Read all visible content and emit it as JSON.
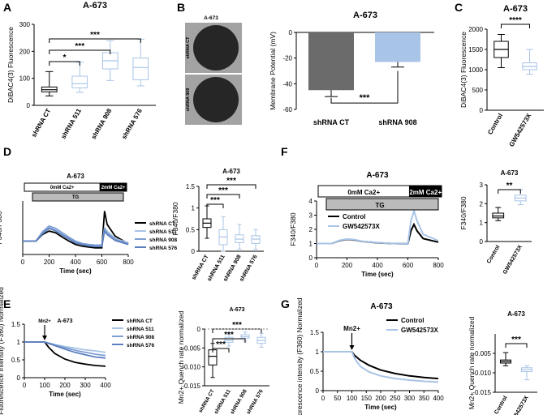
{
  "figure": {
    "panel_letters": [
      "A",
      "B",
      "C",
      "D",
      "E",
      "F",
      "G"
    ],
    "colors": {
      "black": "#000000",
      "dark_blue": "#5b7fbf",
      "light_blue": "#a8c4e6",
      "mid_blue": "#7f9fd3",
      "grey_bar": "#6b6b6b",
      "tg_bar": "#bbbbbb"
    }
  },
  "chart_data": [
    {
      "panel": "A",
      "type": "box",
      "title": "A-673",
      "ylabel": "DiBAC4(3) Fluorescence",
      "ylim": [
        0,
        300
      ],
      "yticks": [
        0,
        100,
        200,
        300
      ],
      "categories": [
        "shRNA CT",
        "shRNA 511",
        "shRNA 908",
        "shRNA 576"
      ],
      "boxes": [
        {
          "min": 35,
          "q1": 50,
          "median": 58,
          "q3": 68,
          "max": 125
        },
        {
          "min": 48,
          "q1": 65,
          "median": 80,
          "q3": 108,
          "max": 160
        },
        {
          "min": 92,
          "q1": 135,
          "median": 165,
          "q3": 195,
          "max": 240
        },
        {
          "min": 72,
          "q1": 95,
          "median": 140,
          "q3": 175,
          "max": 245
        }
      ],
      "comparisons": [
        {
          "from": "shRNA CT",
          "to": "shRNA 511",
          "label": "*"
        },
        {
          "from": "shRNA CT",
          "to": "shRNA 908",
          "label": "***"
        },
        {
          "from": "shRNA CT",
          "to": "shRNA 576",
          "label": "***"
        }
      ]
    },
    {
      "panel": "B",
      "type": "bar",
      "title": "A-673",
      "image_title": "A-673",
      "image_labels": [
        "shRNA CT",
        "shRNA 908"
      ],
      "ylabel": "Membrane Potential (mV)",
      "ylim": [
        -60,
        0
      ],
      "yticks": [
        0,
        -20,
        -40,
        -60
      ],
      "categories": [
        "shRNA CT",
        "shRNA 908"
      ],
      "values": [
        -45,
        -23
      ],
      "errors": [
        5,
        4
      ],
      "comparisons": [
        {
          "from": "shRNA CT",
          "to": "shRNA 908",
          "label": "***"
        }
      ]
    },
    {
      "panel": "C",
      "type": "box",
      "title": "A-673",
      "ylabel": "DiBAC4(3) Fluorescence",
      "ylim": [
        0,
        2000
      ],
      "yticks": [
        0,
        500,
        1000,
        1500,
        2000
      ],
      "categories": [
        "Control",
        "GW542573X"
      ],
      "boxes": [
        {
          "min": 1050,
          "q1": 1300,
          "median": 1500,
          "q3": 1700,
          "max": 1870
        },
        {
          "min": 890,
          "q1": 1000,
          "median": 1080,
          "q3": 1170,
          "max": 1500
        }
      ],
      "comparisons": [
        {
          "from": "Control",
          "to": "GW542573X",
          "label": "****"
        }
      ]
    },
    {
      "panel": "D",
      "type": "line",
      "title": "A-673",
      "ylabel": "F340/F380",
      "xlabel": "Time (sec)",
      "xlim": [
        0,
        800
      ],
      "xticks": [
        0,
        200,
        400,
        600,
        800
      ],
      "ylim": [
        0.6,
        2.2
      ],
      "bar_labels": [
        "0mM Ca2+",
        "2mM Ca2+",
        "TG"
      ],
      "series": [
        {
          "name": "shRNA CT",
          "x": [
            0,
            100,
            150,
            200,
            250,
            300,
            350,
            400,
            450,
            500,
            550,
            600,
            620,
            640,
            700,
            800
          ],
          "y": [
            1.0,
            1.0,
            1.2,
            1.3,
            1.25,
            1.12,
            1.0,
            0.9,
            0.85,
            0.82,
            0.8,
            0.8,
            1.9,
            1.5,
            1.15,
            0.92
          ]
        },
        {
          "name": "shRNA 511",
          "x": [
            0,
            100,
            150,
            200,
            250,
            300,
            350,
            400,
            450,
            500,
            550,
            600,
            620,
            640,
            700,
            800
          ],
          "y": [
            1.0,
            1.0,
            1.25,
            1.4,
            1.35,
            1.22,
            1.1,
            0.98,
            0.92,
            0.88,
            0.87,
            0.87,
            1.4,
            1.3,
            1.08,
            0.95
          ]
        },
        {
          "name": "shRNA 908",
          "x": [
            0,
            100,
            150,
            200,
            250,
            300,
            350,
            400,
            450,
            500,
            550,
            600,
            620,
            640,
            700,
            800
          ],
          "y": [
            1.0,
            1.0,
            1.28,
            1.45,
            1.38,
            1.25,
            1.12,
            1.0,
            0.93,
            0.9,
            0.88,
            0.88,
            1.35,
            1.25,
            1.05,
            0.93
          ]
        },
        {
          "name": "shRNA 576",
          "x": [
            0,
            100,
            150,
            200,
            250,
            300,
            350,
            400,
            450,
            500,
            550,
            600,
            620,
            640,
            700,
            800
          ],
          "y": [
            1.0,
            1.0,
            1.22,
            1.38,
            1.3,
            1.18,
            1.06,
            0.95,
            0.9,
            0.86,
            0.84,
            0.84,
            1.3,
            1.2,
            1.02,
            0.9
          ]
        }
      ]
    },
    {
      "panel": "D-box",
      "type": "box",
      "title": "A-673",
      "ylabel": "F340/F380",
      "ylim": [
        0,
        1.5
      ],
      "yticks": [
        0.0,
        0.5,
        1.0,
        1.5
      ],
      "categories": [
        "shRNA CT",
        "shRNA 511",
        "shRNA 908",
        "shRNA 576"
      ],
      "boxes": [
        {
          "min": 0.3,
          "q1": 0.55,
          "median": 0.65,
          "q3": 0.75,
          "max": 1.05
        },
        {
          "min": 0.0,
          "q1": 0.15,
          "median": 0.33,
          "q3": 0.5,
          "max": 0.8
        },
        {
          "min": 0.05,
          "q1": 0.2,
          "median": 0.28,
          "q3": 0.38,
          "max": 0.62
        },
        {
          "min": 0.05,
          "q1": 0.18,
          "median": 0.28,
          "q3": 0.36,
          "max": 0.5
        }
      ],
      "comparisons": [
        {
          "from": "shRNA CT",
          "to": "shRNA 511",
          "label": "***"
        },
        {
          "from": "shRNA CT",
          "to": "shRNA 908",
          "label": "***"
        },
        {
          "from": "shRNA CT",
          "to": "shRNA 576",
          "label": "***"
        }
      ]
    },
    {
      "panel": "E",
      "type": "line",
      "title": "A-673",
      "ylabel": "Fluorescence Intensity (F360) Normalized",
      "xlabel": "Time (sec)",
      "xlim": [
        0,
        400
      ],
      "xticks": [
        0,
        100,
        200,
        300,
        400
      ],
      "ylim": [
        0.0,
        1.5
      ],
      "yticks": [
        0.0,
        0.5,
        1.0,
        1.5
      ],
      "annotation": "Mn2+",
      "series": [
        {
          "name": "shRNA CT",
          "x": [
            0,
            100,
            120,
            150,
            200,
            250,
            300,
            350,
            400
          ],
          "y": [
            1.0,
            1.0,
            0.85,
            0.68,
            0.52,
            0.43,
            0.38,
            0.34,
            0.32
          ]
        },
        {
          "name": "shRNA 511",
          "x": [
            0,
            100,
            150,
            200,
            250,
            300,
            350,
            400
          ],
          "y": [
            1.0,
            1.0,
            0.93,
            0.87,
            0.83,
            0.78,
            0.75,
            0.71
          ]
        },
        {
          "name": "shRNA 908",
          "x": [
            0,
            100,
            150,
            200,
            250,
            300,
            350,
            400
          ],
          "y": [
            1.0,
            1.0,
            0.92,
            0.84,
            0.77,
            0.71,
            0.66,
            0.62
          ]
        },
        {
          "name": "shRNA 576",
          "x": [
            0,
            100,
            150,
            200,
            250,
            300,
            350,
            400
          ],
          "y": [
            1.0,
            1.0,
            0.9,
            0.8,
            0.71,
            0.64,
            0.58,
            0.55
          ]
        }
      ]
    },
    {
      "panel": "E-box",
      "type": "box",
      "title": "A-673",
      "ylabel": "Mn2+ Quench rate normalized",
      "ylim": [
        -0.015,
        0.0
      ],
      "yticks": [
        0.0,
        -0.005,
        -0.01,
        -0.015
      ],
      "categories": [
        "shRNA CT",
        "shRNA 511",
        "shRNA 908",
        "shRNA 576"
      ],
      "boxes": [
        {
          "min": -0.0128,
          "q1": -0.0095,
          "median": -0.0072,
          "q3": -0.0055,
          "max": -0.0038
        },
        {
          "min": -0.0045,
          "q1": -0.0035,
          "median": -0.003,
          "q3": -0.0022,
          "max": -0.0012
        },
        {
          "min": -0.0032,
          "q1": -0.0024,
          "median": -0.002,
          "q3": -0.0015,
          "max": -0.0008
        },
        {
          "min": -0.0048,
          "q1": -0.0038,
          "median": -0.003,
          "q3": -0.0022,
          "max": -0.0012
        }
      ],
      "comparisons": [
        {
          "from": "shRNA CT",
          "to": "shRNA 511",
          "label": "***"
        },
        {
          "from": "shRNA CT",
          "to": "shRNA 908",
          "label": "***"
        },
        {
          "from": "shRNA CT",
          "to": "shRNA 576",
          "label": "***"
        }
      ]
    },
    {
      "panel": "F",
      "type": "line",
      "title": "A-673",
      "ylabel": "F340/F380",
      "xlabel": "Time (sec)",
      "xlim": [
        0,
        800
      ],
      "xticks": [
        0,
        200,
        400,
        600,
        800
      ],
      "ylim": [
        0,
        4
      ],
      "yticks": [
        0,
        1,
        2,
        3,
        4
      ],
      "bar_labels": [
        "0mM Ca2+",
        "2mM Ca2+",
        "TG"
      ],
      "series": [
        {
          "name": "Control",
          "x": [
            0,
            100,
            150,
            200,
            250,
            300,
            400,
            500,
            600,
            620,
            640,
            660,
            700,
            800
          ],
          "y": [
            1.0,
            1.0,
            1.2,
            1.3,
            1.25,
            1.15,
            1.05,
            1.0,
            0.98,
            1.9,
            2.35,
            1.9,
            1.35,
            1.1
          ]
        },
        {
          "name": "GW542573X",
          "x": [
            0,
            100,
            150,
            200,
            250,
            300,
            400,
            500,
            600,
            620,
            640,
            660,
            700,
            800
          ],
          "y": [
            1.0,
            1.0,
            1.22,
            1.32,
            1.27,
            1.16,
            1.06,
            1.0,
            0.98,
            2.6,
            3.3,
            2.6,
            1.65,
            1.2
          ]
        }
      ]
    },
    {
      "panel": "F-box",
      "type": "box",
      "title": "A-673",
      "ylabel": "F340/F380",
      "ylim": [
        0,
        3
      ],
      "yticks": [
        0,
        1,
        2,
        3
      ],
      "categories": [
        "Control",
        "GW542573X"
      ],
      "boxes": [
        {
          "min": 1.1,
          "q1": 1.25,
          "median": 1.35,
          "q3": 1.5,
          "max": 1.8
        },
        {
          "min": 1.95,
          "q1": 2.15,
          "median": 2.3,
          "q3": 2.45,
          "max": 2.75
        }
      ],
      "comparisons": [
        {
          "from": "Control",
          "to": "GW542573X",
          "label": "**"
        }
      ]
    },
    {
      "panel": "G",
      "type": "line",
      "title": "A-673",
      "ylabel": "Fluorescence intensity (F360) Normalized",
      "xlabel": "Time (sec)",
      "xlim": [
        0,
        400
      ],
      "xticks": [
        0,
        50,
        100,
        150,
        200,
        250,
        300,
        350,
        400
      ],
      "ylim": [
        0.0,
        1.5
      ],
      "yticks": [
        0.0,
        0.5,
        1.0,
        1.5
      ],
      "annotation": "Mn2+",
      "series": [
        {
          "name": "Control",
          "x": [
            0,
            100,
            110,
            130,
            160,
            200,
            250,
            300,
            350,
            400
          ],
          "y": [
            1.0,
            1.0,
            0.9,
            0.78,
            0.65,
            0.53,
            0.44,
            0.38,
            0.34,
            0.31
          ]
        },
        {
          "name": "GW542573X",
          "x": [
            0,
            100,
            110,
            130,
            160,
            200,
            250,
            300,
            350,
            400
          ],
          "y": [
            1.0,
            1.0,
            0.82,
            0.62,
            0.48,
            0.38,
            0.31,
            0.27,
            0.24,
            0.22
          ]
        }
      ]
    },
    {
      "panel": "G-box",
      "type": "box",
      "title": "A-673",
      "ylabel": "Mn2+ Quench rate normalized",
      "ylim": [
        -0.015,
        -0.0
      ],
      "yticks": [
        -0.005,
        -0.01,
        -0.015
      ],
      "categories": [
        "Control",
        "GW542573X"
      ],
      "boxes": [
        {
          "min": -0.0082,
          "q1": -0.0075,
          "median": -0.0071,
          "q3": -0.0067,
          "max": -0.0048
        },
        {
          "min": -0.0118,
          "q1": -0.0097,
          "median": -0.0092,
          "q3": -0.0087,
          "max": -0.0082
        }
      ],
      "comparisons": [
        {
          "from": "Control",
          "to": "GW542573X",
          "label": "***"
        }
      ]
    }
  ]
}
